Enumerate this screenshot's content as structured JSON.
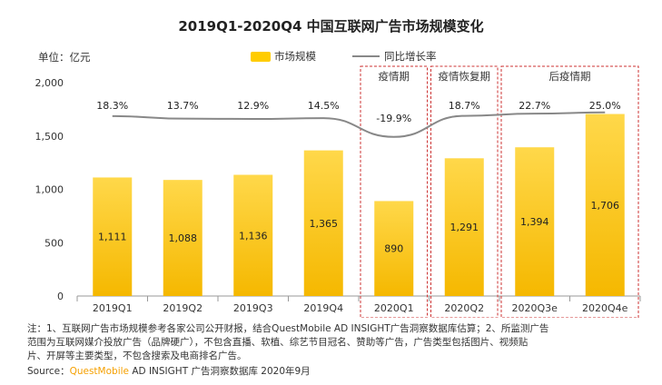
{
  "title": "2019Q1-2020Q4 中国互联网广告市场规模变化",
  "unit_label": "单位：亿元",
  "legend": {
    "bar": "市场规模",
    "line": "同比增长率"
  },
  "chart_data": {
    "type": "bar",
    "title": "2019Q1-2020Q4 中国互联网广告市场规模变化",
    "ylabel": "单位：亿元",
    "ylim": [
      0,
      2000
    ],
    "yticks": [
      "0",
      "500",
      "1,000",
      "1,500",
      "2,000"
    ],
    "categories": [
      "2019Q1",
      "2019Q2",
      "2019Q3",
      "2019Q4",
      "2020Q1",
      "2020Q2",
      "2020Q3e",
      "2020Q4e"
    ],
    "series": [
      {
        "name": "市场规模",
        "type": "bar",
        "values": [
          1111,
          1088,
          1136,
          1365,
          890,
          1291,
          1394,
          1706
        ],
        "labels": [
          "1,111",
          "1,088",
          "1,136",
          "1,365",
          "890",
          "1,291",
          "1,394",
          "1,706"
        ]
      },
      {
        "name": "同比增长率",
        "type": "line",
        "values": [
          18.3,
          13.7,
          12.9,
          14.5,
          -19.9,
          18.7,
          22.7,
          25.0
        ],
        "labels": [
          "18.3%",
          "13.7%",
          "12.9%",
          "14.5%",
          "-19.9%",
          "18.7%",
          "22.7%",
          "25.0%"
        ]
      }
    ],
    "annotations": [
      {
        "label": "疫情期",
        "categories": [
          "2020Q1"
        ]
      },
      {
        "label": "疫情恢复期",
        "categories": [
          "2020Q2"
        ]
      },
      {
        "label": "后疫情期",
        "categories": [
          "2020Q3e",
          "2020Q4e"
        ]
      }
    ],
    "colors": {
      "bar_top": "#ffd84a",
      "bar_bottom": "#f5b800",
      "line": "#888888",
      "dashed_box": "#cc3333"
    }
  },
  "notes": {
    "line1": "注：1、互联网广告市场规模参考各家公司公开财报，结合QuestMobile AD INSIGHT广告洞察数据库估算；2、所监测广告",
    "line2": "范围为互联网媒介投放广告（品牌硬广），不包含直播、软植、综艺节目冠名、赞助等广告，广告类型包括图片、视频贴",
    "line3": "片、开屏等主要类型，不包含搜索及电商排名广告。"
  },
  "source": {
    "prefix": "Source：",
    "brand": "QuestMobile",
    "rest": " AD INSIGHT 广告洞察数据库 2020年9月"
  }
}
